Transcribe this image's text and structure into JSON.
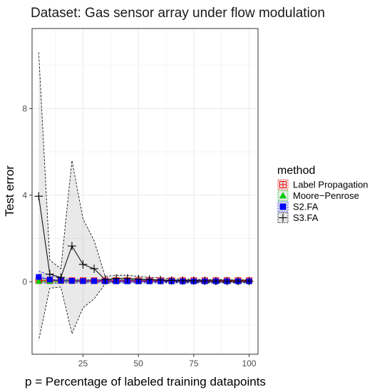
{
  "chart_data": {
    "type": "line",
    "title": "Dataset: Gas sensor array under flow modulation",
    "xlabel": "p = Percentage of labeled training datapoints",
    "ylabel": "Test error",
    "xlim": [
      2,
      104
    ],
    "ylim": [
      -3.35,
      11.7
    ],
    "x_ticks": [
      25,
      50,
      75,
      100
    ],
    "y_ticks": [
      0,
      4,
      8
    ],
    "grid": true,
    "legend": {
      "title": "method",
      "position": "right"
    },
    "x": [
      5,
      10,
      15,
      20,
      25,
      30,
      35,
      40,
      45,
      50,
      55,
      60,
      65,
      70,
      75,
      80,
      85,
      90,
      95,
      100
    ],
    "series": [
      {
        "name": "Label Propagation",
        "color": "#ff0000",
        "marker": "crossed-square",
        "values": [
          0.05,
          0.05,
          0.05,
          0.05,
          0.05,
          0.05,
          0.05,
          0.05,
          0.05,
          0.05,
          0.05,
          0.05,
          0.05,
          0.05,
          0.05,
          0.05,
          0.05,
          0.05,
          0.05,
          0.05
        ],
        "lower": [
          0.0,
          0.0,
          0.0,
          0.0,
          0.0,
          0.0,
          0.0,
          0.0,
          0.0,
          0.0,
          0.0,
          0.0,
          0.0,
          0.0,
          0.0,
          0.0,
          0.0,
          0.0,
          0.0,
          0.0
        ],
        "upper": [
          0.1,
          0.1,
          0.1,
          0.1,
          0.1,
          0.1,
          0.1,
          0.1,
          0.1,
          0.1,
          0.1,
          0.1,
          0.1,
          0.1,
          0.1,
          0.1,
          0.1,
          0.1,
          0.1,
          0.1
        ]
      },
      {
        "name": "Moore−Penrose",
        "color": "#00cc00",
        "marker": "triangle",
        "values": [
          0.02,
          0.02,
          0.02,
          0.02,
          0.02,
          0.02,
          0.02,
          0.02,
          0.02,
          0.02,
          0.02,
          0.02,
          0.02,
          0.02,
          0.02,
          0.02,
          0.02,
          0.02,
          0.02,
          0.02
        ],
        "lower": [
          -0.05,
          -0.05,
          -0.05,
          -0.05,
          -0.05,
          -0.05,
          -0.05,
          -0.05,
          -0.05,
          -0.05,
          -0.05,
          -0.05,
          -0.05,
          -0.05,
          -0.05,
          -0.05,
          -0.05,
          -0.05,
          -0.05,
          -0.05
        ],
        "upper": [
          0.09,
          0.09,
          0.09,
          0.09,
          0.09,
          0.09,
          0.09,
          0.09,
          0.09,
          0.09,
          0.09,
          0.09,
          0.09,
          0.09,
          0.09,
          0.09,
          0.09,
          0.09,
          0.09,
          0.09
        ]
      },
      {
        "name": "S2.FA",
        "color": "#0000ff",
        "marker": "square",
        "values": [
          0.22,
          0.1,
          0.05,
          0.04,
          0.03,
          0.03,
          0.02,
          0.02,
          0.02,
          0.02,
          0.02,
          0.02,
          0.02,
          0.02,
          0.02,
          0.02,
          0.02,
          0.02,
          0.02,
          0.02
        ],
        "lower": [
          0.0,
          -0.1,
          -0.05,
          -0.05,
          -0.05,
          -0.05,
          -0.05,
          -0.05,
          -0.05,
          -0.05,
          -0.05,
          -0.05,
          -0.05,
          -0.05,
          -0.05,
          -0.05,
          -0.05,
          -0.05,
          -0.05,
          -0.05
        ],
        "upper": [
          0.5,
          0.3,
          0.15,
          0.12,
          0.1,
          0.1,
          0.08,
          0.08,
          0.08,
          0.08,
          0.08,
          0.08,
          0.08,
          0.08,
          0.08,
          0.08,
          0.08,
          0.08,
          0.08,
          0.08
        ]
      },
      {
        "name": "S3.FA",
        "color": "#000000",
        "marker": "plus",
        "values": [
          3.95,
          0.35,
          0.2,
          1.65,
          0.8,
          0.6,
          0.1,
          0.15,
          0.15,
          0.12,
          0.1,
          0.08,
          0.06,
          0.05,
          0.05,
          0.04,
          0.03,
          0.03,
          0.03,
          0.03
        ],
        "lower": [
          -2.7,
          -0.3,
          -0.25,
          -2.4,
          -1.2,
          -0.8,
          -0.1,
          0.02,
          0.03,
          0.02,
          0.0,
          0.0,
          -0.02,
          -0.02,
          -0.02,
          -0.02,
          -0.03,
          -0.03,
          -0.03,
          -0.03
        ],
        "upper": [
          10.6,
          1.0,
          0.6,
          5.6,
          2.9,
          1.9,
          0.25,
          0.3,
          0.3,
          0.25,
          0.2,
          0.18,
          0.15,
          0.12,
          0.12,
          0.1,
          0.1,
          0.08,
          0.08,
          0.08
        ]
      }
    ]
  }
}
